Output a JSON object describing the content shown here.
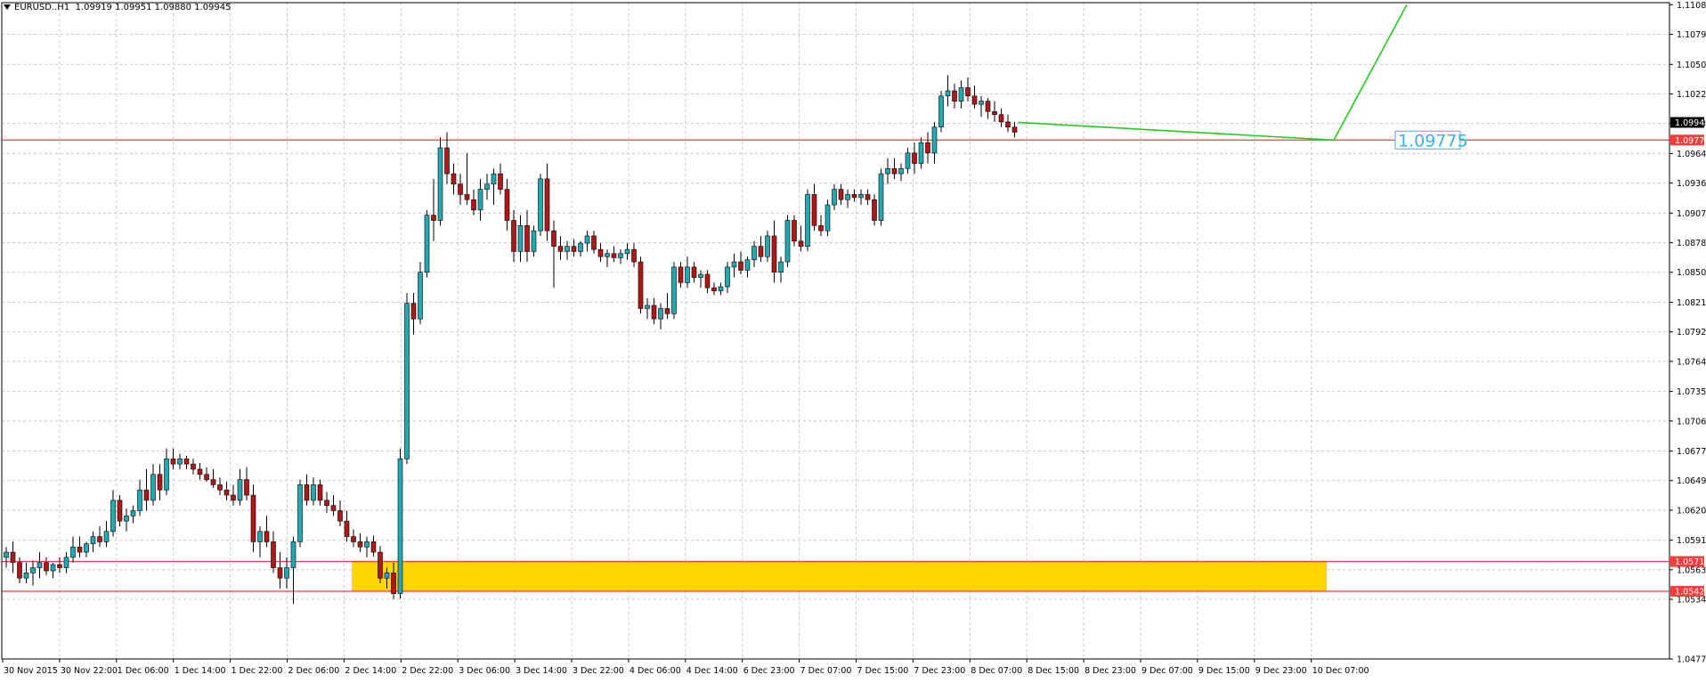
{
  "header": {
    "symbol": "EURUSD..H1",
    "ohlc": "1.09919 1.09951 1.09880 1.09945"
  },
  "colors": {
    "bull": "#26a8b2",
    "bear": "#b01818",
    "level_line": "#ff3c3c",
    "zone": "#ffd700",
    "projection": "#22cc22",
    "annotation": "#36b3e6",
    "grid": "#c8c8c8"
  },
  "chart_data": {
    "type": "candlestick",
    "timeframe": "H1",
    "ylim": [
      1.0477,
      1.111
    ],
    "grid": true,
    "y_ticks": [
      "1.11080",
      "1.10795",
      "1.10505",
      "1.10220",
      "1.09935",
      "1.09645",
      "1.09360",
      "1.09070",
      "1.08785",
      "1.08500",
      "1.08210",
      "1.07925",
      "1.07640",
      "1.07350",
      "1.07065",
      "1.06775",
      "1.06490",
      "1.06205",
      "1.05915",
      "1.05630",
      "1.05345",
      "1.04770"
    ],
    "x_ticks": [
      "30 Nov 2015",
      "30 Nov 22:00",
      "1 Dec 06:00",
      "1 Dec 14:00",
      "1 Dec 22:00",
      "2 Dec 06:00",
      "2 Dec 14:00",
      "2 Dec 22:00",
      "3 Dec 06:00",
      "3 Dec 14:00",
      "3 Dec 22:00",
      "4 Dec 06:00",
      "4 Dec 14:00",
      "6 Dec 23:00",
      "7 Dec 07:00",
      "7 Dec 15:00",
      "7 Dec 23:00",
      "8 Dec 07:00",
      "8 Dec 15:00",
      "8 Dec 23:00",
      "9 Dec 07:00",
      "9 Dec 15:00",
      "9 Dec 23:00",
      "10 Dec 07:00"
    ],
    "current_price": "1.09945",
    "levels": [
      {
        "value": 1.09775,
        "label": "1.09775"
      },
      {
        "value": 1.0571,
        "label": "1.05710"
      },
      {
        "value": 1.05423,
        "label": "1.05423"
      }
    ],
    "zone": {
      "from": 1.05423,
      "to": 1.0571
    },
    "annotation": {
      "text": "1.09775",
      "price": 1.09775
    },
    "projection": {
      "start": 1.09945,
      "low": 1.09775,
      "end": 1.1108
    },
    "candles": [
      [
        1.0575,
        1.0585,
        1.0565,
        1.058
      ],
      [
        1.058,
        1.059,
        1.056,
        1.057
      ],
      [
        1.057,
        1.0575,
        1.055,
        1.0555
      ],
      [
        1.0555,
        1.057,
        1.055,
        1.056
      ],
      [
        1.056,
        1.0572,
        1.0548,
        1.0565
      ],
      [
        1.0565,
        1.058,
        1.0555,
        1.057
      ],
      [
        1.057,
        1.0575,
        1.0558,
        1.0562
      ],
      [
        1.0562,
        1.057,
        1.0555,
        1.0568
      ],
      [
        1.0568,
        1.0575,
        1.056,
        1.0565
      ],
      [
        1.0565,
        1.058,
        1.056,
        1.0575
      ],
      [
        1.0575,
        1.0595,
        1.057,
        1.0585
      ],
      [
        1.0585,
        1.0595,
        1.0575,
        1.058
      ],
      [
        1.058,
        1.059,
        1.0575,
        1.0588
      ],
      [
        1.0588,
        1.06,
        1.058,
        1.0595
      ],
      [
        1.0595,
        1.0605,
        1.0585,
        1.059
      ],
      [
        1.059,
        1.061,
        1.0585,
        1.06
      ],
      [
        1.06,
        1.064,
        1.0595,
        1.063
      ],
      [
        1.063,
        1.0635,
        1.0605,
        1.061
      ],
      [
        1.061,
        1.0622,
        1.06,
        1.0615
      ],
      [
        1.0615,
        1.0625,
        1.0608,
        1.062
      ],
      [
        1.062,
        1.065,
        1.0615,
        1.064
      ],
      [
        1.064,
        1.066,
        1.062,
        1.063
      ],
      [
        1.063,
        1.0665,
        1.0625,
        1.0655
      ],
      [
        1.0655,
        1.0665,
        1.063,
        1.064
      ],
      [
        1.064,
        1.068,
        1.0635,
        1.067
      ],
      [
        1.067,
        1.068,
        1.066,
        1.0665
      ],
      [
        1.0665,
        1.0675,
        1.066,
        1.067
      ],
      [
        1.067,
        1.0673,
        1.066,
        1.0665
      ],
      [
        1.0665,
        1.067,
        1.0655,
        1.066
      ],
      [
        1.066,
        1.0666,
        1.065,
        1.0655
      ],
      [
        1.0655,
        1.0662,
        1.0648,
        1.065
      ],
      [
        1.065,
        1.066,
        1.0642,
        1.0645
      ],
      [
        1.0645,
        1.0652,
        1.0635,
        1.064
      ],
      [
        1.064,
        1.0648,
        1.063,
        1.0635
      ],
      [
        1.0635,
        1.0645,
        1.0625,
        1.063
      ],
      [
        1.063,
        1.066,
        1.0625,
        1.065
      ],
      [
        1.065,
        1.0662,
        1.063,
        1.0635
      ],
      [
        1.0635,
        1.0645,
        1.058,
        1.059
      ],
      [
        1.059,
        1.0605,
        1.0575,
        1.06
      ],
      [
        1.06,
        1.0615,
        1.0585,
        1.059
      ],
      [
        1.059,
        1.06,
        1.056,
        1.0565
      ],
      [
        1.0565,
        1.058,
        1.0545,
        1.0555
      ],
      [
        1.0555,
        1.0575,
        1.0545,
        1.0565
      ],
      [
        1.0565,
        1.0595,
        1.053,
        1.059
      ],
      [
        1.059,
        1.065,
        1.0585,
        1.0645
      ],
      [
        1.0645,
        1.0655,
        1.0625,
        1.063
      ],
      [
        1.063,
        1.0652,
        1.0625,
        1.0645
      ],
      [
        1.0645,
        1.065,
        1.0625,
        1.063
      ],
      [
        1.063,
        1.0638,
        1.0618,
        1.0625
      ],
      [
        1.0625,
        1.0635,
        1.0615,
        1.062
      ],
      [
        1.062,
        1.063,
        1.0605,
        1.061
      ],
      [
        1.061,
        1.062,
        1.059,
        1.0595
      ],
      [
        1.0595,
        1.0602,
        1.0585,
        1.059
      ],
      [
        1.059,
        1.0598,
        1.058,
        1.0585
      ],
      [
        1.0585,
        1.0595,
        1.0575,
        1.059
      ],
      [
        1.059,
        1.0596,
        1.0576,
        1.058
      ],
      [
        1.058,
        1.0586,
        1.055,
        1.0555
      ],
      [
        1.0555,
        1.0565,
        1.0545,
        1.056
      ],
      [
        1.056,
        1.057,
        1.0535,
        1.054
      ],
      [
        1.054,
        1.068,
        1.0535,
        1.067
      ],
      [
        1.067,
        1.083,
        1.0665,
        1.082
      ],
      [
        1.082,
        1.083,
        1.079,
        1.0805
      ],
      [
        1.0805,
        1.086,
        1.08,
        1.085
      ],
      [
        1.085,
        1.091,
        1.0845,
        1.0905
      ],
      [
        1.0905,
        1.094,
        1.088,
        1.09
      ],
      [
        1.09,
        1.098,
        1.0895,
        1.097
      ],
      [
        1.097,
        1.0985,
        1.0935,
        1.0945
      ],
      [
        1.0945,
        1.0955,
        1.0925,
        1.0935
      ],
      [
        1.0935,
        1.0945,
        1.0915,
        1.0925
      ],
      [
        1.0925,
        1.0965,
        1.0915,
        1.092
      ],
      [
        1.092,
        1.093,
        1.0905,
        1.091
      ],
      [
        1.091,
        1.094,
        1.09,
        1.093
      ],
      [
        1.093,
        1.0945,
        1.092,
        1.0935
      ],
      [
        1.0935,
        1.095,
        1.0915,
        1.0945
      ],
      [
        1.0945,
        1.0955,
        1.0925,
        1.093
      ],
      [
        1.093,
        1.094,
        1.089,
        1.09
      ],
      [
        1.09,
        1.091,
        1.086,
        1.087
      ],
      [
        1.087,
        1.0905,
        1.086,
        1.0895
      ],
      [
        1.0895,
        1.091,
        1.086,
        1.087
      ],
      [
        1.087,
        1.0895,
        1.0865,
        1.089
      ],
      [
        1.089,
        1.0945,
        1.0885,
        1.094
      ],
      [
        1.094,
        1.0955,
        1.088,
        1.089
      ],
      [
        1.089,
        1.09,
        1.0835,
        1.0875
      ],
      [
        1.0875,
        1.0885,
        1.0862,
        1.087
      ],
      [
        1.087,
        1.088,
        1.0862,
        1.0875
      ],
      [
        1.0875,
        1.0882,
        1.0865,
        1.087
      ],
      [
        1.087,
        1.088,
        1.0865,
        1.0878
      ],
      [
        1.0878,
        1.089,
        1.087,
        1.0885
      ],
      [
        1.0885,
        1.089,
        1.0868,
        1.0872
      ],
      [
        1.0872,
        1.0878,
        1.086,
        1.0865
      ],
      [
        1.0865,
        1.0872,
        1.0855,
        1.0868
      ],
      [
        1.0868,
        1.0875,
        1.086,
        1.0864
      ],
      [
        1.0864,
        1.0872,
        1.0858,
        1.0868
      ],
      [
        1.0868,
        1.0878,
        1.0862,
        1.0872
      ],
      [
        1.0872,
        1.0878,
        1.0855,
        1.086
      ],
      [
        1.086,
        1.0865,
        1.081,
        1.0815
      ],
      [
        1.0815,
        1.0825,
        1.0805,
        1.0818
      ],
      [
        1.0818,
        1.0825,
        1.08,
        1.0805
      ],
      [
        1.0805,
        1.082,
        1.0795,
        1.0815
      ],
      [
        1.0815,
        1.083,
        1.0805,
        1.081
      ],
      [
        1.081,
        1.086,
        1.0805,
        1.0855
      ],
      [
        1.0855,
        1.086,
        1.0835,
        1.084
      ],
      [
        1.084,
        1.0865,
        1.0835,
        1.0855
      ],
      [
        1.0855,
        1.086,
        1.084,
        1.0845
      ],
      [
        1.0845,
        1.0852,
        1.0835,
        1.0848
      ],
      [
        1.0848,
        1.0852,
        1.083,
        1.0835
      ],
      [
        1.0835,
        1.084,
        1.0828,
        1.0832
      ],
      [
        1.0832,
        1.084,
        1.0828,
        1.0836
      ],
      [
        1.0836,
        1.086,
        1.083,
        1.0855
      ],
      [
        1.0855,
        1.0868,
        1.0845,
        1.086
      ],
      [
        1.086,
        1.087,
        1.0848,
        1.0852
      ],
      [
        1.0852,
        1.0865,
        1.0845,
        1.0862
      ],
      [
        1.0862,
        1.088,
        1.0855,
        1.0875
      ],
      [
        1.0875,
        1.0885,
        1.086,
        1.0865
      ],
      [
        1.0865,
        1.089,
        1.086,
        1.0885
      ],
      [
        1.0885,
        1.09,
        1.084,
        1.085
      ],
      [
        1.085,
        1.0865,
        1.084,
        1.086
      ],
      [
        1.086,
        1.0905,
        1.0855,
        1.09
      ],
      [
        1.09,
        1.0905,
        1.0875,
        1.088
      ],
      [
        1.088,
        1.0895,
        1.087,
        1.0875
      ],
      [
        1.0875,
        1.093,
        1.087,
        1.0925
      ],
      [
        1.0925,
        1.0935,
        1.089,
        1.0895
      ],
      [
        1.0895,
        1.0905,
        1.0885,
        1.089
      ],
      [
        1.089,
        1.092,
        1.0885,
        1.0915
      ],
      [
        1.0915,
        1.0935,
        1.091,
        1.093
      ],
      [
        1.093,
        1.0935,
        1.0915,
        1.092
      ],
      [
        1.092,
        1.093,
        1.0912,
        1.0925
      ],
      [
        1.0925,
        1.093,
        1.0918,
        1.0922
      ],
      [
        1.0922,
        1.093,
        1.0915,
        1.0925
      ],
      [
        1.0925,
        1.093,
        1.0915,
        1.092
      ],
      [
        1.092,
        1.0925,
        1.0895,
        1.09
      ],
      [
        1.09,
        1.095,
        1.0895,
        1.0945
      ],
      [
        1.0945,
        1.096,
        1.0935,
        1.095
      ],
      [
        1.095,
        1.096,
        1.094,
        1.0945
      ],
      [
        1.0945,
        1.0955,
        1.0938,
        1.095
      ],
      [
        1.095,
        1.097,
        1.0945,
        1.0965
      ],
      [
        1.0965,
        1.0975,
        1.0945,
        1.0955
      ],
      [
        1.0955,
        1.098,
        1.095,
        1.0975
      ],
      [
        1.0975,
        1.0985,
        1.0955,
        1.0965
      ],
      [
        1.0965,
        1.0995,
        1.0955,
        1.099
      ],
      [
        1.099,
        1.1025,
        1.0985,
        1.102
      ],
      [
        1.102,
        1.104,
        1.101,
        1.1025
      ],
      [
        1.1025,
        1.1032,
        1.1008,
        1.1015
      ],
      [
        1.1015,
        1.1035,
        1.1008,
        1.1028
      ],
      [
        1.1028,
        1.1038,
        1.1015,
        1.102
      ],
      [
        1.102,
        1.103,
        1.1008,
        1.1012
      ],
      [
        1.1012,
        1.102,
        1.1,
        1.1015
      ],
      [
        1.1015,
        1.1018,
        1.0998,
        1.1005
      ],
      [
        1.1005,
        1.1015,
        1.0995,
        1.1002
      ],
      [
        1.1002,
        1.1008,
        1.099,
        1.0995
      ],
      [
        1.0995,
        1.1002,
        1.0985,
        1.099
      ],
      [
        1.099,
        1.0995,
        1.098,
        1.0985
      ]
    ]
  }
}
